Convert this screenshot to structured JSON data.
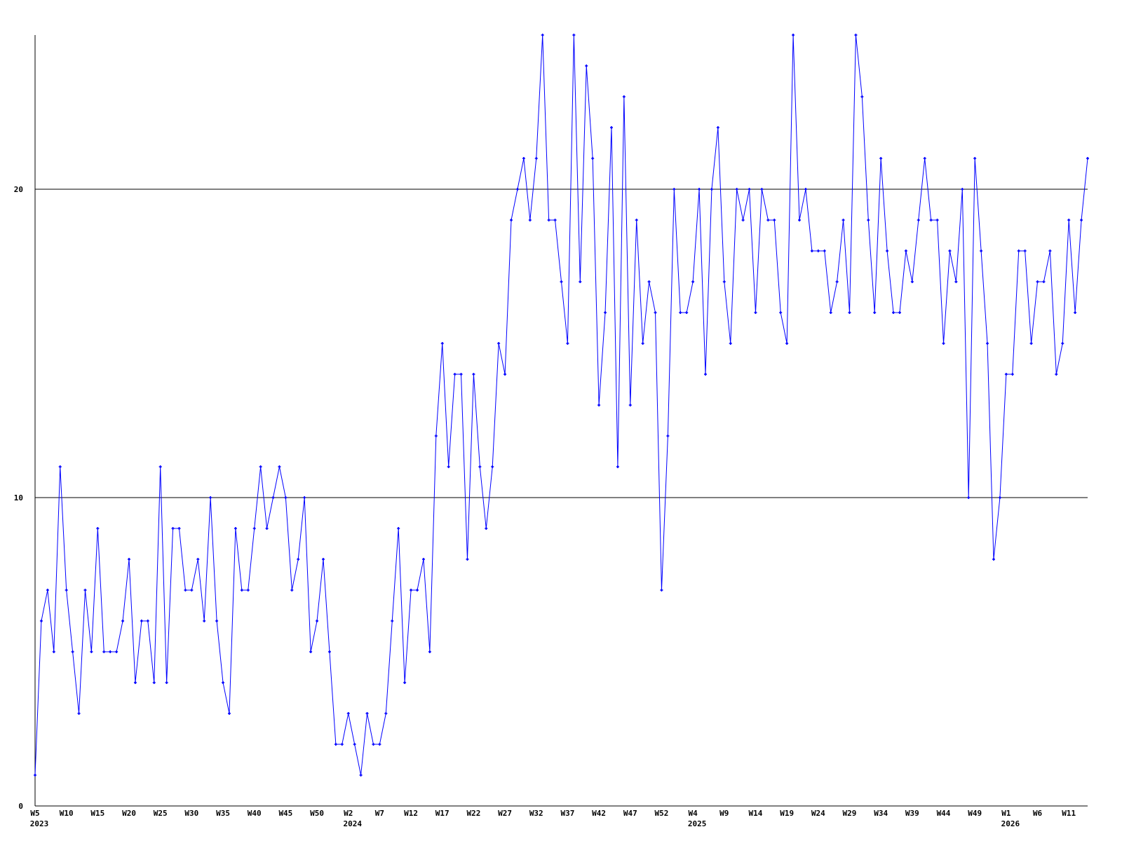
{
  "chart_data": {
    "type": "line",
    "title": "",
    "xlabel": "",
    "ylabel": "",
    "ylim": [
      0,
      25
    ],
    "y_ticks": [
      "0",
      "10",
      "20"
    ],
    "grid": "horizontal lines at 10 and 20",
    "legend": "none",
    "colors": {
      "line": "#0000ff",
      "axis": "#000000",
      "grid": "#000000"
    },
    "x_tick_every": 5,
    "x_ticks": [
      {
        "label": "W5",
        "year": "2023"
      },
      {
        "label": "W10",
        "year": ""
      },
      {
        "label": "W15",
        "year": ""
      },
      {
        "label": "W20",
        "year": ""
      },
      {
        "label": "W25",
        "year": ""
      },
      {
        "label": "W30",
        "year": ""
      },
      {
        "label": "W35",
        "year": ""
      },
      {
        "label": "W40",
        "year": ""
      },
      {
        "label": "W45",
        "year": ""
      },
      {
        "label": "W50",
        "year": ""
      },
      {
        "label": "W2",
        "year": "2024"
      },
      {
        "label": "W7",
        "year": ""
      },
      {
        "label": "W12",
        "year": ""
      },
      {
        "label": "W17",
        "year": ""
      },
      {
        "label": "W22",
        "year": ""
      },
      {
        "label": "W27",
        "year": ""
      },
      {
        "label": "W32",
        "year": ""
      },
      {
        "label": "W37",
        "year": ""
      },
      {
        "label": "W42",
        "year": ""
      },
      {
        "label": "W47",
        "year": ""
      },
      {
        "label": "W52",
        "year": ""
      },
      {
        "label": "W4",
        "year": "2025"
      },
      {
        "label": "W9",
        "year": ""
      },
      {
        "label": "W14",
        "year": ""
      },
      {
        "label": "W19",
        "year": ""
      },
      {
        "label": "W24",
        "year": ""
      },
      {
        "label": "W29",
        "year": ""
      },
      {
        "label": "W34",
        "year": ""
      },
      {
        "label": "W39",
        "year": ""
      },
      {
        "label": "W44",
        "year": ""
      },
      {
        "label": "W49",
        "year": ""
      },
      {
        "label": "W1",
        "year": "2026"
      },
      {
        "label": "W6",
        "year": ""
      },
      {
        "label": "W11",
        "year": ""
      }
    ],
    "series": [
      {
        "values": [
          1,
          6,
          7,
          5,
          11,
          7,
          5,
          3,
          7,
          5,
          9,
          5,
          5,
          5,
          6,
          8,
          4,
          6,
          6,
          4,
          11,
          4,
          9,
          9,
          7,
          7,
          8,
          6,
          10,
          6,
          4,
          3,
          9,
          7,
          7,
          9,
          11,
          9,
          10,
          11,
          10,
          7,
          8,
          10,
          5,
          6,
          8,
          5,
          2,
          2,
          3,
          2,
          1,
          3,
          2,
          2,
          3,
          6,
          9,
          4,
          7,
          7,
          8,
          5,
          12,
          15,
          11,
          14,
          14,
          8,
          14,
          11,
          9,
          11,
          15,
          14,
          19,
          20,
          21,
          19,
          21,
          25,
          19,
          19,
          17,
          15,
          25,
          17,
          24,
          21,
          13,
          16,
          22,
          11,
          23,
          13,
          19,
          15,
          17,
          16,
          7,
          12,
          20,
          16,
          16,
          17,
          20,
          14,
          20,
          22,
          17,
          15,
          20,
          19,
          20,
          16,
          20,
          19,
          19,
          16,
          15,
          25,
          19,
          20,
          18,
          18,
          18,
          16,
          17,
          19,
          16,
          25,
          23,
          19,
          16,
          21,
          18,
          16,
          16,
          18,
          17,
          19,
          21,
          19,
          19,
          15,
          18,
          17,
          20,
          10,
          21,
          18,
          15,
          8,
          10,
          14,
          14,
          18,
          18,
          15,
          17,
          17,
          18,
          14,
          15,
          19,
          16,
          19,
          21
        ]
      }
    ]
  }
}
